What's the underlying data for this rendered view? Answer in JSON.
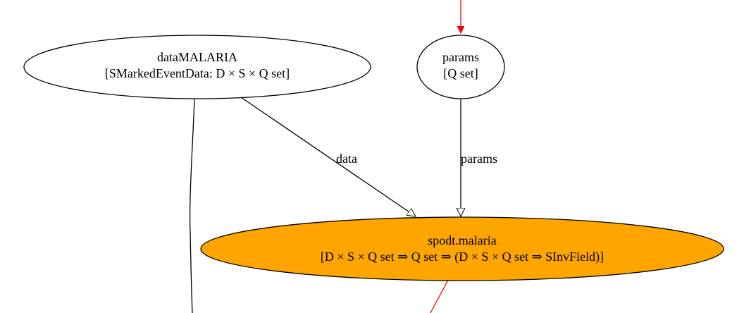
{
  "colors": {
    "background": "#ffffff",
    "stroke": "#000000",
    "highlight_fill": "#ffa500",
    "incoming_edge": "#ff0000",
    "outgoing_edge": "#ff0000"
  },
  "nodes": {
    "data_malaria": {
      "name": "dataMALARIA",
      "type": "[SMarkedEventData: D × S × Q set]"
    },
    "params": {
      "name": "params",
      "type": "[Q set]"
    },
    "spodt_malaria": {
      "name": "spodt.malaria",
      "type": "[D × S × Q set ⇒ Q set ⇒ (D × S × Q set ⇒ SInvField)]"
    }
  },
  "edges": {
    "data_edge": {
      "label": "data"
    },
    "params_edge": {
      "label": "params"
    }
  }
}
